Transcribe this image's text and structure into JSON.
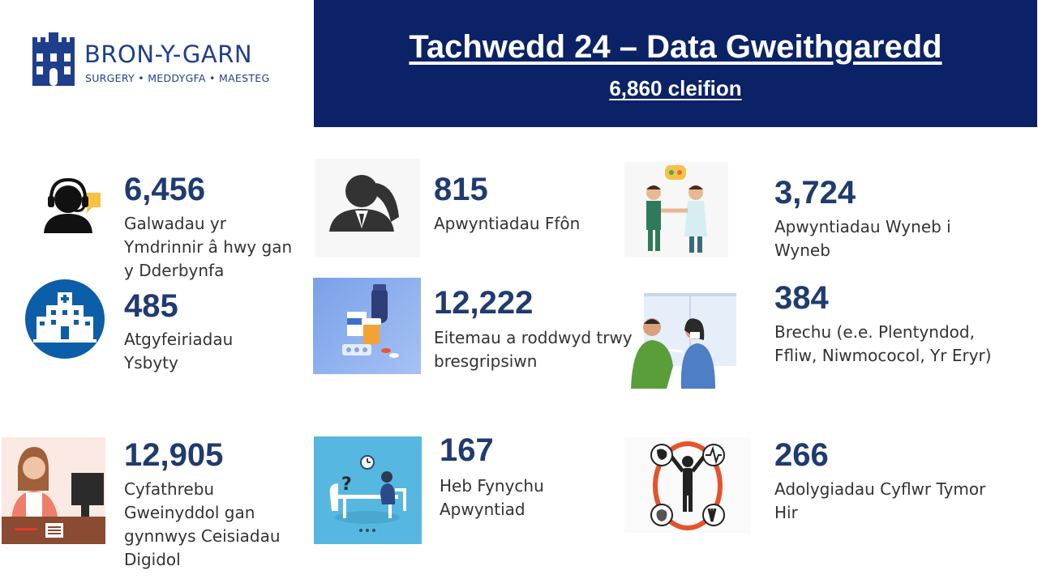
{
  "logo": {
    "name": "BRON-Y-GARN",
    "subtitle": "SURGERY • MEDDYGFA • MAESTEG"
  },
  "header": {
    "title": "Tachwedd 24 – Data Gweithgaredd",
    "subtitle": "6,860 cleifion"
  },
  "stats": [
    {
      "value": "6,456",
      "label": "Galwadau yr Ymdrinnir â hwy gan y Dderbynfa",
      "icon": "call-centre-icon"
    },
    {
      "value": "815",
      "label": "Apwyntiadau Ffôn",
      "icon": "phone-call-icon"
    },
    {
      "value": "3,724",
      "label": "Apwyntiadau Wyneb i Wyneb",
      "icon": "face-to-face-icon"
    },
    {
      "value": "485",
      "label": "Atgyfeiriadau Ysbyty",
      "icon": "hospital-icon"
    },
    {
      "value": "12,222",
      "label": "Eitemau a roddwyd trwy bresgripsiwn",
      "icon": "medicines-icon"
    },
    {
      "value": "384",
      "label": "Brechu (e.e. Plentyndod, Ffliw, Niwmococol, Yr Eryr)",
      "icon": "vaccination-icon"
    },
    {
      "value": "12,905",
      "label": "Cyfathrebu Gweinyddol gan gynnwys Ceisiadau Digidol",
      "icon": "receptionist-icon"
    },
    {
      "value": "167",
      "label": "Heb Fynychu Apwyntiad",
      "icon": "missed-appointment-icon"
    },
    {
      "value": "266",
      "label": "Adolygiadau Cyflwr Tymor Hir",
      "icon": "long-term-condition-icon"
    }
  ],
  "colors": {
    "banner": "#0b2266",
    "number": "#1f3b6f",
    "logo": "#1f3f8c"
  }
}
